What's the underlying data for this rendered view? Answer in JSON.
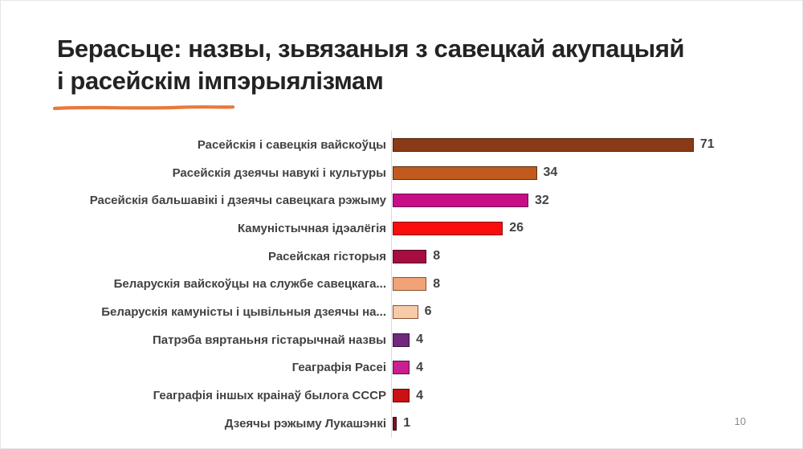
{
  "slide": {
    "title_line1": "Берасьце: назвы, зьвязаныя з савецкай акупацыяй",
    "title_line2": "і расейскім імпэрыялізмам",
    "accent_color": "#E8793B",
    "page_number": "10"
  },
  "chart_data": {
    "type": "bar",
    "orientation": "horizontal",
    "title": "Берасьце: назвы, зьвязаныя з савецкай акупацыяй і расейскім імпэрыялізмам",
    "categories": [
      "Расейскія і савецкія вайскоўцы",
      "Расейскія дзеячы навукі і культуры",
      "Расейскія бальшавікі і дзеячы савецкага рэжыму",
      "Камуністычная ідэалёгія",
      "Расейская гісторыя",
      "Беларускія вайскоўцы на службе савецкага...",
      "Беларускія камуністы і цывільныя дзеячы на...",
      "Патрэба вяртаньня гістарычнай назвы",
      "Геаграфія Расеі",
      "Геаграфія іншых краінаў былога СССР",
      "Дзеячы рэжыму Лукашэнкі"
    ],
    "values": [
      71,
      34,
      32,
      26,
      8,
      8,
      6,
      4,
      4,
      4,
      1
    ],
    "bar_colors": [
      "#8A3A16",
      "#C05A1E",
      "#C90D86",
      "#FA0D0D",
      "#A50E3E",
      "#F1A277",
      "#F7CAA8",
      "#70297C",
      "#CB1F8F",
      "#CC1113",
      "#7C1222"
    ],
    "bar_border_colors": [
      "#4D2008",
      "#5F2D0D",
      "#6A1050",
      "#8B0E12",
      "#4F0A22",
      "#8A5230",
      "#8A5230",
      "#38143F",
      "#5E1140",
      "#5C0A0B",
      "#40080F"
    ],
    "value_labels_shown": true,
    "xlim": [
      0,
      75
    ],
    "grid": false,
    "legend": false,
    "axis_line_color": "#DADADA",
    "label_color": "#424242"
  }
}
